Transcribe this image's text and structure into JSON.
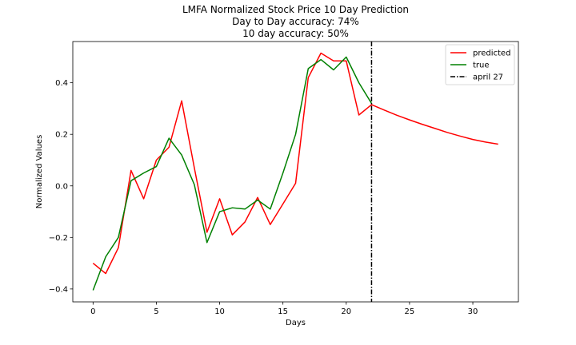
{
  "chart_data": {
    "type": "line",
    "title_lines": [
      "LMFA Normalized Stock Price 10 Day Prediction",
      "Day to Day accuracy: 74%",
      "10 day accuracy: 50%"
    ],
    "xlabel": "Days",
    "ylabel": "Normalized Values",
    "xlim": [
      -1.6,
      33.6
    ],
    "ylim": [
      -0.45,
      0.56
    ],
    "xticks": [
      0,
      5,
      10,
      15,
      20,
      25,
      30
    ],
    "yticks": [
      -0.4,
      -0.2,
      0.0,
      0.2,
      0.4
    ],
    "ytick_labels": [
      "−0.4",
      "−0.2",
      "0.0",
      "0.2",
      "0.4"
    ],
    "grid": false,
    "legend_position": "top-right",
    "series": [
      {
        "name": "predicted",
        "color": "#ff0000",
        "x": [
          0,
          1,
          2,
          3,
          4,
          5,
          6,
          7,
          8,
          9,
          10,
          11,
          12,
          13,
          14,
          15,
          16,
          17,
          18,
          19,
          20,
          21,
          22,
          23,
          24,
          25,
          26,
          27,
          28,
          29,
          30,
          31,
          32
        ],
        "y": [
          -0.3,
          -0.34,
          -0.24,
          0.06,
          -0.05,
          0.1,
          0.15,
          0.33,
          0.07,
          -0.18,
          -0.05,
          -0.19,
          -0.14,
          -0.045,
          -0.15,
          -0.07,
          0.01,
          0.42,
          0.515,
          0.485,
          0.485,
          0.275,
          0.315,
          0.294,
          0.274,
          0.256,
          0.239,
          0.223,
          0.207,
          0.193,
          0.18,
          0.17,
          0.162
        ]
      },
      {
        "name": "true",
        "color": "#008000",
        "x": [
          0,
          1,
          2,
          3,
          4,
          5,
          6,
          7,
          8,
          9,
          10,
          11,
          12,
          13,
          14,
          15,
          16,
          17,
          18,
          19,
          20,
          21,
          22
        ],
        "y": [
          -0.405,
          -0.275,
          -0.2,
          0.02,
          0.05,
          0.075,
          0.185,
          0.12,
          0.005,
          -0.22,
          -0.1,
          -0.085,
          -0.09,
          -0.055,
          -0.09,
          0.05,
          0.2,
          0.455,
          0.49,
          0.45,
          0.5,
          0.4,
          0.32
        ]
      }
    ],
    "vline": {
      "name": "april 27",
      "x": 22,
      "color": "#000000",
      "style": "dashdot"
    }
  }
}
